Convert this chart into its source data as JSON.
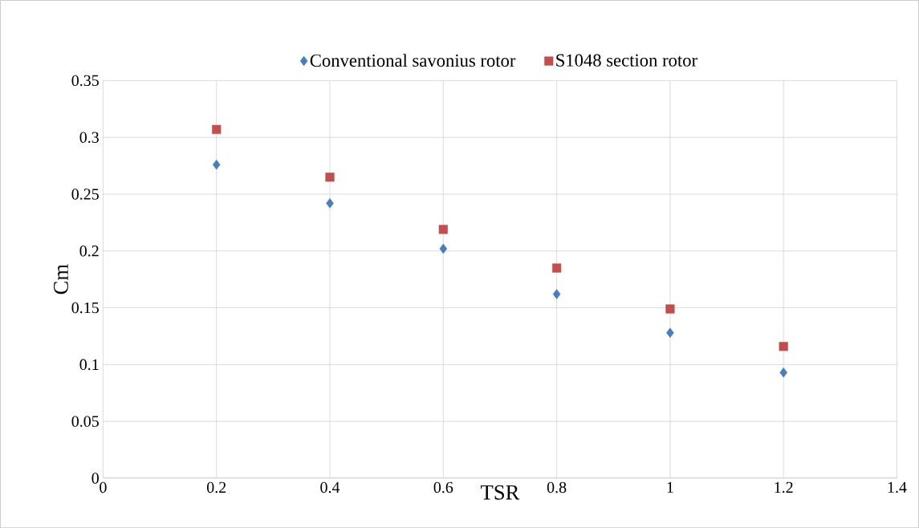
{
  "chart_data": {
    "type": "scatter",
    "xlabel": "TSR",
    "ylabel": "Cm",
    "xlim": [
      0,
      1.4
    ],
    "xticks": [
      0,
      0.2,
      0.4,
      0.6,
      0.8,
      1,
      1.2,
      1.4
    ],
    "ylim": [
      0,
      0.35
    ],
    "yticks": [
      0,
      0.05,
      0.1,
      0.15,
      0.2,
      0.25,
      0.3,
      0.35
    ],
    "grid": true,
    "legend": "top",
    "series": [
      {
        "name": "Conventional savonius rotor",
        "color": "#4a7ebb",
        "marker": "diamond",
        "x": [
          0.2,
          0.4,
          0.6,
          0.8,
          1,
          1.2
        ],
        "values": [
          0.276,
          0.242,
          0.202,
          0.162,
          0.128,
          0.093
        ]
      },
      {
        "name": "S1048 section rotor",
        "color": "#c0504d",
        "marker": "square",
        "x": [
          0.2,
          0.4,
          0.6,
          0.8,
          1,
          1.2
        ],
        "values": [
          0.307,
          0.265,
          0.219,
          0.185,
          0.149,
          0.116
        ]
      }
    ]
  }
}
